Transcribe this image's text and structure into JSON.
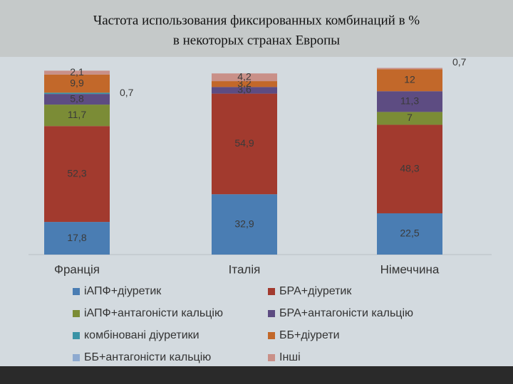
{
  "chart_data": {
    "type": "stacked_bar",
    "title": "Частота использования фиксированных комбинаций в %",
    "subtitle": "в некоторых странах Европы",
    "categories": [
      "Франція",
      "Італія",
      "Німеччина"
    ],
    "ylim": [
      0,
      102
    ],
    "series": [
      {
        "name": "іАПФ+діуретик",
        "color": "#4a7db3",
        "values": [
          17.8,
          32.9,
          22.5
        ],
        "value_labels": [
          "17,8",
          "32,9",
          "22,5"
        ]
      },
      {
        "name": "БРА+діуретик",
        "color": "#a23a2e",
        "values": [
          52.3,
          54.9,
          48.3
        ],
        "value_labels": [
          "52,3",
          "54,9",
          "48,3"
        ]
      },
      {
        "name": "іАПФ+антагоністи кальцію",
        "color": "#7b8c36",
        "values": [
          11.7,
          null,
          7
        ],
        "value_labels": [
          "11,7",
          null,
          "7"
        ]
      },
      {
        "name": "БРА+антагоністи кальцію",
        "color": "#5d4c82",
        "values": [
          5.8,
          3.6,
          11.3
        ],
        "value_labels": [
          "5,8",
          "3,6",
          "11,3"
        ]
      },
      {
        "name": "комбіновані діуретики",
        "color": "#3a93a6",
        "values": [
          0.7,
          null,
          null
        ],
        "value_labels": [
          "0,7",
          null,
          null
        ]
      },
      {
        "name": "ББ+діурети",
        "color": "#c2682a",
        "values": [
          9.9,
          3.2,
          12
        ],
        "value_labels": [
          "9,9",
          "3,2",
          "12"
        ]
      },
      {
        "name": "ББ+антагоністи кальцію",
        "color": "#8eaad0",
        "values": [
          null,
          null,
          null
        ]
      },
      {
        "name": "Інші",
        "color": "#c99088",
        "values": [
          2.1,
          4.2,
          0.7
        ],
        "value_labels": [
          "2,1",
          "4,2",
          "0,7"
        ]
      }
    ]
  }
}
